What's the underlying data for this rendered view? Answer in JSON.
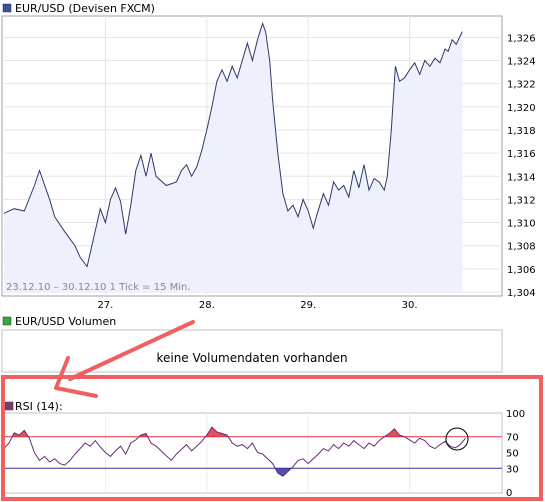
{
  "price_panel": {
    "title": "EUR/USD (Devisen FXCM)",
    "info": "23.12.10 – 30.12.10   1 Tick = 15 Min.",
    "marker_color": "#3a4f9c",
    "line_color": "#2c3a66",
    "fill_color": "#eef1fb"
  },
  "volume_panel": {
    "title": "EUR/USD Volumen",
    "message": "keine Volumendaten vorhanden",
    "marker_color": "#33aa33"
  },
  "rsi_panel": {
    "title": "RSI (14):",
    "marker_color": "#7a3b7a",
    "line_color": "#6b2a7a",
    "upper_color": "#e03040",
    "lower_color": "#3030a0"
  },
  "annotation": {
    "color": "#f06060"
  },
  "chart_data": [
    {
      "type": "line",
      "title": "EUR/USD (Devisen FXCM)",
      "x_tick_labels": [
        "27.",
        "28.",
        "29.",
        "30."
      ],
      "y_ticks": [
        "1,304",
        "1,306",
        "1,308",
        "1,310",
        "1,312",
        "1,314",
        "1,316",
        "1,318",
        "1,320",
        "1,322",
        "1,324",
        "1,326"
      ],
      "ylim": [
        1.304,
        1.3275
      ],
      "grid": true,
      "series": [
        {
          "points": [
            [
              0.0,
              1.3108
            ],
            [
              0.1,
              1.3112
            ],
            [
              0.2,
              1.311
            ],
            [
              0.3,
              1.3132
            ],
            [
              0.35,
              1.3145
            ],
            [
              0.45,
              1.312
            ],
            [
              0.5,
              1.3105
            ],
            [
              0.6,
              1.3092
            ],
            [
              0.7,
              1.308
            ],
            [
              0.75,
              1.307
            ],
            [
              0.82,
              1.3062
            ],
            [
              0.88,
              1.3085
            ],
            [
              0.95,
              1.3112
            ],
            [
              1.0,
              1.31
            ],
            [
              1.05,
              1.312
            ],
            [
              1.1,
              1.313
            ],
            [
              1.15,
              1.3118
            ],
            [
              1.2,
              1.309
            ],
            [
              1.25,
              1.3115
            ],
            [
              1.3,
              1.3145
            ],
            [
              1.35,
              1.3158
            ],
            [
              1.4,
              1.314
            ],
            [
              1.45,
              1.316
            ],
            [
              1.5,
              1.314
            ],
            [
              1.6,
              1.3132
            ],
            [
              1.7,
              1.3135
            ],
            [
              1.75,
              1.3145
            ],
            [
              1.8,
              1.315
            ],
            [
              1.85,
              1.314
            ],
            [
              1.9,
              1.3148
            ],
            [
              1.95,
              1.3162
            ],
            [
              2.0,
              1.318
            ],
            [
              2.05,
              1.32
            ],
            [
              2.1,
              1.3222
            ],
            [
              2.15,
              1.3232
            ],
            [
              2.2,
              1.3222
            ],
            [
              2.25,
              1.3235
            ],
            [
              2.3,
              1.3225
            ],
            [
              2.35,
              1.324
            ],
            [
              2.4,
              1.3255
            ],
            [
              2.45,
              1.324
            ],
            [
              2.5,
              1.3258
            ],
            [
              2.55,
              1.3272
            ],
            [
              2.58,
              1.3265
            ],
            [
              2.62,
              1.324
            ],
            [
              2.65,
              1.3205
            ],
            [
              2.7,
              1.316
            ],
            [
              2.75,
              1.3125
            ],
            [
              2.8,
              1.311
            ],
            [
              2.85,
              1.3115
            ],
            [
              2.9,
              1.3105
            ],
            [
              2.95,
              1.312
            ],
            [
              3.0,
              1.311
            ],
            [
              3.05,
              1.3095
            ],
            [
              3.08,
              1.3105
            ],
            [
              3.15,
              1.3125
            ],
            [
              3.2,
              1.3115
            ],
            [
              3.25,
              1.3135
            ],
            [
              3.3,
              1.3128
            ],
            [
              3.35,
              1.3132
            ],
            [
              3.4,
              1.3122
            ],
            [
              3.45,
              1.3145
            ],
            [
              3.5,
              1.313
            ],
            [
              3.55,
              1.315
            ],
            [
              3.6,
              1.3128
            ],
            [
              3.65,
              1.3138
            ],
            [
              3.7,
              1.3135
            ],
            [
              3.75,
              1.3128
            ],
            [
              3.78,
              1.314
            ],
            [
              3.82,
              1.318
            ],
            [
              3.86,
              1.3235
            ],
            [
              3.9,
              1.3222
            ],
            [
              3.95,
              1.3225
            ],
            [
              4.0,
              1.3232
            ],
            [
              4.05,
              1.3238
            ],
            [
              4.1,
              1.3228
            ],
            [
              4.15,
              1.324
            ],
            [
              4.2,
              1.3235
            ],
            [
              4.25,
              1.3242
            ],
            [
              4.3,
              1.3238
            ],
            [
              4.35,
              1.325
            ],
            [
              4.38,
              1.3248
            ],
            [
              4.42,
              1.3258
            ],
            [
              4.46,
              1.3254
            ],
            [
              4.52,
              1.3265
            ]
          ]
        }
      ]
    },
    {
      "type": "line",
      "title": "EUR/USD Volumen",
      "series": []
    },
    {
      "type": "line",
      "title": "RSI (14):",
      "y_ticks": [
        "0",
        "30",
        "50",
        "70",
        "100"
      ],
      "ylim": [
        0,
        100
      ],
      "reference_lines": [
        70,
        30
      ],
      "series": [
        {
          "points": [
            [
              0.0,
              55
            ],
            [
              0.05,
              62
            ],
            [
              0.1,
              75
            ],
            [
              0.15,
              72
            ],
            [
              0.2,
              78
            ],
            [
              0.25,
              68
            ],
            [
              0.3,
              50
            ],
            [
              0.35,
              40
            ],
            [
              0.4,
              45
            ],
            [
              0.45,
              38
            ],
            [
              0.5,
              42
            ],
            [
              0.55,
              36
            ],
            [
              0.6,
              34
            ],
            [
              0.65,
              40
            ],
            [
              0.7,
              48
            ],
            [
              0.75,
              55
            ],
            [
              0.8,
              62
            ],
            [
              0.85,
              58
            ],
            [
              0.9,
              65
            ],
            [
              0.95,
              57
            ],
            [
              1.0,
              50
            ],
            [
              1.05,
              45
            ],
            [
              1.1,
              52
            ],
            [
              1.15,
              58
            ],
            [
              1.2,
              48
            ],
            [
              1.25,
              62
            ],
            [
              1.3,
              66
            ],
            [
              1.35,
              72
            ],
            [
              1.4,
              74
            ],
            [
              1.45,
              62
            ],
            [
              1.5,
              58
            ],
            [
              1.55,
              52
            ],
            [
              1.6,
              46
            ],
            [
              1.65,
              40
            ],
            [
              1.7,
              48
            ],
            [
              1.75,
              54
            ],
            [
              1.8,
              60
            ],
            [
              1.85,
              52
            ],
            [
              1.9,
              58
            ],
            [
              1.95,
              64
            ],
            [
              2.0,
              72
            ],
            [
              2.05,
              82
            ],
            [
              2.1,
              76
            ],
            [
              2.15,
              74
            ],
            [
              2.2,
              72
            ],
            [
              2.25,
              62
            ],
            [
              2.3,
              58
            ],
            [
              2.35,
              60
            ],
            [
              2.4,
              55
            ],
            [
              2.45,
              62
            ],
            [
              2.5,
              50
            ],
            [
              2.55,
              48
            ],
            [
              2.6,
              42
            ],
            [
              2.65,
              36
            ],
            [
              2.7,
              24
            ],
            [
              2.75,
              20
            ],
            [
              2.8,
              26
            ],
            [
              2.85,
              32
            ],
            [
              2.9,
              40
            ],
            [
              2.95,
              42
            ],
            [
              3.0,
              36
            ],
            [
              3.05,
              42
            ],
            [
              3.1,
              48
            ],
            [
              3.15,
              55
            ],
            [
              3.2,
              52
            ],
            [
              3.25,
              60
            ],
            [
              3.3,
              55
            ],
            [
              3.35,
              62
            ],
            [
              3.4,
              58
            ],
            [
              3.45,
              65
            ],
            [
              3.5,
              60
            ],
            [
              3.55,
              55
            ],
            [
              3.6,
              62
            ],
            [
              3.65,
              58
            ],
            [
              3.7,
              65
            ],
            [
              3.75,
              70
            ],
            [
              3.8,
              74
            ],
            [
              3.85,
              80
            ],
            [
              3.9,
              72
            ],
            [
              3.95,
              70
            ],
            [
              4.0,
              66
            ],
            [
              4.05,
              62
            ],
            [
              4.1,
              68
            ],
            [
              4.15,
              65
            ],
            [
              4.2,
              58
            ],
            [
              4.25,
              55
            ],
            [
              4.3,
              60
            ],
            [
              4.35,
              64
            ],
            [
              4.4,
              58
            ],
            [
              4.45,
              56
            ],
            [
              4.5,
              60
            ],
            [
              4.55,
              68
            ]
          ]
        }
      ]
    }
  ]
}
